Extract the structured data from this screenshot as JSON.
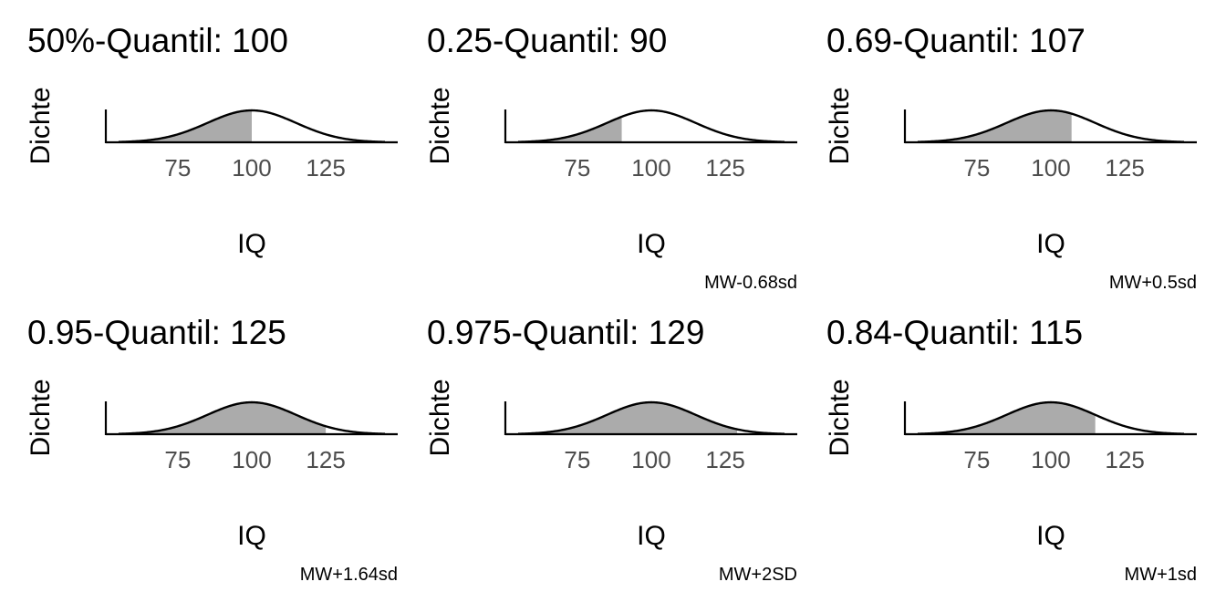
{
  "chart_data": [
    {
      "type": "area",
      "title": "50%-Quantil: 100",
      "xlabel": "IQ",
      "ylabel": "Dichte",
      "caption": "",
      "x_ticks": [
        75,
        100,
        125
      ],
      "xlim": [
        55,
        145
      ],
      "distribution": {
        "mean": 100,
        "sd": 15
      },
      "shaded_upto": 100
    },
    {
      "type": "area",
      "title": "0.25-Quantil: 90",
      "xlabel": "IQ",
      "ylabel": "Dichte",
      "caption": "MW-0.68sd",
      "x_ticks": [
        75,
        100,
        125
      ],
      "xlim": [
        55,
        145
      ],
      "distribution": {
        "mean": 100,
        "sd": 15
      },
      "shaded_upto": 90
    },
    {
      "type": "area",
      "title": "0.69-Quantil: 107",
      "xlabel": "IQ",
      "ylabel": "Dichte",
      "caption": "MW+0.5sd",
      "x_ticks": [
        75,
        100,
        125
      ],
      "xlim": [
        55,
        145
      ],
      "distribution": {
        "mean": 100,
        "sd": 15
      },
      "shaded_upto": 107
    },
    {
      "type": "area",
      "title": "0.95-Quantil: 125",
      "xlabel": "IQ",
      "ylabel": "Dichte",
      "caption": "MW+1.64sd",
      "x_ticks": [
        75,
        100,
        125
      ],
      "xlim": [
        55,
        145
      ],
      "distribution": {
        "mean": 100,
        "sd": 15
      },
      "shaded_upto": 125
    },
    {
      "type": "area",
      "title": "0.975-Quantil: 129",
      "xlabel": "IQ",
      "ylabel": "Dichte",
      "caption": "MW+2SD",
      "x_ticks": [
        75,
        100,
        125
      ],
      "xlim": [
        55,
        145
      ],
      "distribution": {
        "mean": 100,
        "sd": 15
      },
      "shaded_upto": 129
    },
    {
      "type": "area",
      "title": "0.84-Quantil: 115",
      "xlabel": "IQ",
      "ylabel": "Dichte",
      "caption": "MW+1sd",
      "x_ticks": [
        75,
        100,
        125
      ],
      "xlim": [
        55,
        145
      ],
      "distribution": {
        "mean": 100,
        "sd": 15
      },
      "shaded_upto": 115
    }
  ],
  "colors": {
    "fill": "#ababab",
    "line": "#000000",
    "tick_text": "#4d4d4d",
    "text": "#000000"
  }
}
